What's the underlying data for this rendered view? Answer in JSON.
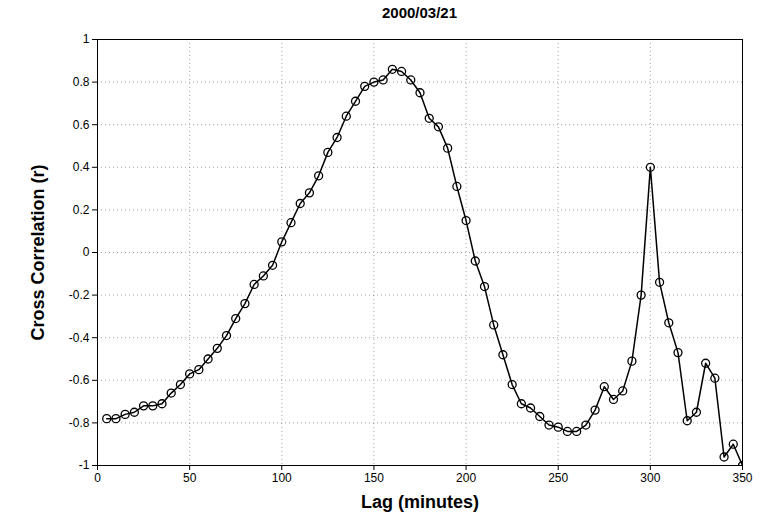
{
  "chart_data": {
    "type": "line",
    "title": "2000/03/21",
    "x_label": "Lag (minutes)",
    "y_label": "Cross Correlation (r)",
    "x": [
      5,
      10,
      15,
      20,
      25,
      30,
      35,
      40,
      45,
      50,
      55,
      60,
      65,
      70,
      75,
      80,
      85,
      90,
      95,
      100,
      105,
      110,
      115,
      120,
      125,
      130,
      135,
      140,
      145,
      150,
      155,
      160,
      165,
      170,
      175,
      180,
      185,
      190,
      195,
      200,
      205,
      210,
      215,
      220,
      225,
      230,
      235,
      240,
      245,
      250,
      255,
      260,
      265,
      270,
      275,
      280,
      285,
      290,
      295,
      300,
      305,
      310,
      315,
      320,
      325,
      330,
      335,
      340,
      345,
      350
    ],
    "values": [
      -0.78,
      -0.78,
      -0.76,
      -0.75,
      -0.72,
      -0.72,
      -0.71,
      -0.66,
      -0.62,
      -0.57,
      -0.55,
      -0.5,
      -0.45,
      -0.39,
      -0.31,
      -0.24,
      -0.15,
      -0.11,
      -0.06,
      0.05,
      0.14,
      0.23,
      0.28,
      0.36,
      0.47,
      0.54,
      0.64,
      0.71,
      0.78,
      0.8,
      0.81,
      0.86,
      0.85,
      0.81,
      0.75,
      0.63,
      0.59,
      0.49,
      0.31,
      0.15,
      -0.04,
      -0.16,
      -0.34,
      -0.48,
      -0.62,
      -0.71,
      -0.73,
      -0.77,
      -0.81,
      -0.82,
      -0.84,
      -0.84,
      -0.81,
      -0.74,
      -0.63,
      -0.69,
      -0.65,
      -0.51,
      -0.2,
      0.4,
      -0.14,
      -0.33,
      -0.47,
      -0.79,
      -0.75,
      -0.52,
      -0.59,
      -0.96,
      -0.9,
      -1.0
    ],
    "color": "#000000",
    "marker": "circle",
    "line_style": "solid",
    "xlim": [
      0,
      350
    ],
    "xticks": [
      0,
      50,
      100,
      150,
      200,
      250,
      300,
      350
    ],
    "ylim": [
      -1,
      1
    ],
    "yticks": [
      -1,
      -0.8,
      -0.6,
      -0.4,
      -0.2,
      0,
      0.2,
      0.4,
      0.6,
      0.8,
      1
    ],
    "grid": true
  }
}
